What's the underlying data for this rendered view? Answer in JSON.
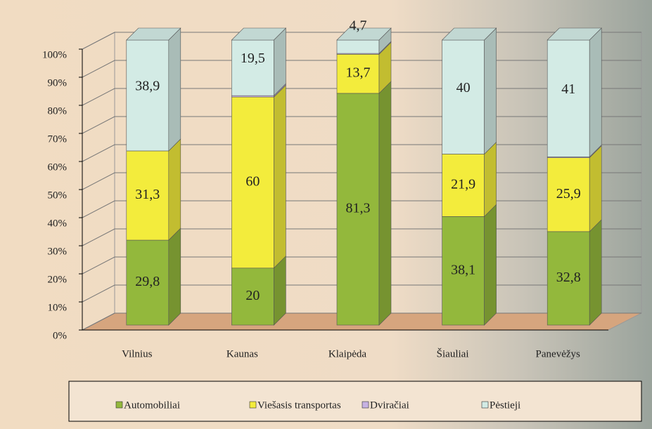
{
  "chart_data": {
    "type": "bar",
    "stacked": true,
    "categories": [
      "Vilnius",
      "Kaunas",
      "Klaipėda",
      "Šiauliai",
      "Panevėžys"
    ],
    "series": [
      {
        "name": "Automobiliai",
        "color": "#93b83c",
        "values": [
          29.8,
          20,
          81.3,
          38.1,
          32.8
        ],
        "value_labels": [
          "29,8",
          "20",
          "81,3",
          "38,1",
          "32,8"
        ]
      },
      {
        "name": "Viešasis transportas",
        "color": "#f3ec3c",
        "values": [
          31.3,
          60,
          13.7,
          21.9,
          25.9
        ],
        "value_labels": [
          "31,3",
          "60",
          "13,7",
          "21,9",
          "25,9"
        ]
      },
      {
        "name": "Dviračiai",
        "color": "#c7b2e2",
        "values": [
          0,
          0.5,
          0.3,
          0,
          0.3
        ],
        "value_labels": [
          "0",
          "0,5",
          "0,3",
          "0",
          "0,3"
        ]
      },
      {
        "name": "Pėstieji",
        "color": "#d3ebe5",
        "values": [
          38.9,
          19.5,
          4.7,
          40,
          41
        ],
        "value_labels": [
          "38,9",
          "19,5",
          "4,7",
          "40",
          "41"
        ]
      }
    ],
    "ylim": [
      0,
      100
    ],
    "yticks": [
      {
        "value": 0,
        "label": "0%"
      },
      {
        "value": 10,
        "label": "10%"
      },
      {
        "value": 20,
        "label": "20%"
      },
      {
        "value": 30,
        "label": "30%"
      },
      {
        "value": 40,
        "label": "40%"
      },
      {
        "value": 50,
        "label": "50%"
      },
      {
        "value": 60,
        "label": "60%"
      },
      {
        "value": 70,
        "label": "70%"
      },
      {
        "value": 80,
        "label": "80%"
      },
      {
        "value": 90,
        "label": "90%"
      },
      {
        "value": 100,
        "label": "100%"
      }
    ],
    "grid": true,
    "legend": "bottom"
  }
}
